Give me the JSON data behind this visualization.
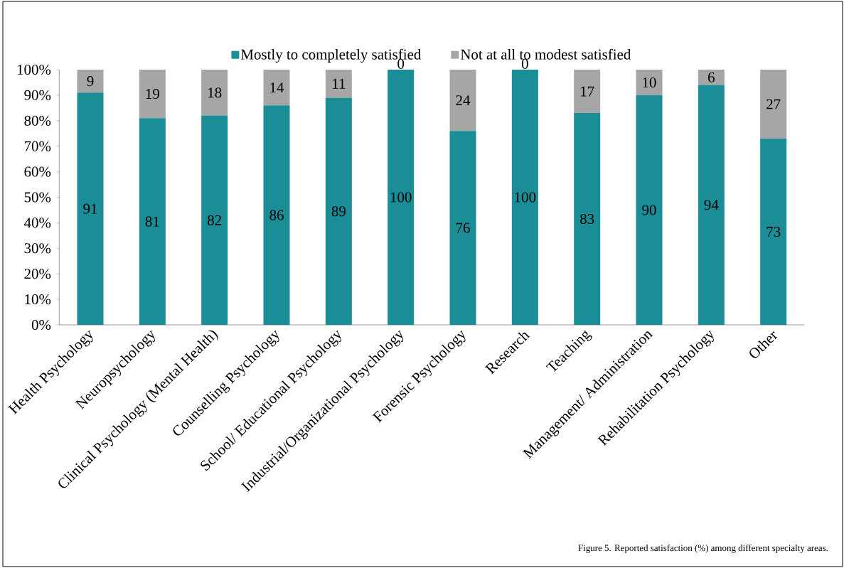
{
  "chart_data": {
    "type": "bar",
    "stacked": true,
    "categories": [
      "Health Psychology",
      "Neuropsychology",
      "Clinical Psychology (Mental Health)",
      "Counselling Psychology",
      "School/ Educational Psychology",
      "Industrial/Organizational Psychology",
      "Forensic Psychology",
      "Research",
      "Teaching",
      "Management/ Administration",
      "Rehabilitation Psychology",
      "Other"
    ],
    "series": [
      {
        "name": "Mostly to completely  satisfied",
        "color": "#1b8d97",
        "values": [
          91,
          81,
          82,
          86,
          89,
          100,
          76,
          100,
          83,
          90,
          94,
          73
        ]
      },
      {
        "name": "Not at all to modest satisfied",
        "color": "#a6a6a6",
        "values": [
          9,
          19,
          18,
          14,
          11,
          0,
          24,
          0,
          17,
          10,
          6,
          27
        ]
      }
    ],
    "ylim": [
      0,
      100
    ],
    "yticks": [
      {
        "value": 0,
        "label": "0%"
      },
      {
        "value": 10,
        "label": "10%"
      },
      {
        "value": 20,
        "label": "20%"
      },
      {
        "value": 30,
        "label": "30%"
      },
      {
        "value": 40,
        "label": "40%"
      },
      {
        "value": 50,
        "label": "50%"
      },
      {
        "value": 60,
        "label": "60%"
      },
      {
        "value": 70,
        "label": "70%"
      },
      {
        "value": 80,
        "label": "80%"
      },
      {
        "value": 90,
        "label": "90%"
      },
      {
        "value": 100,
        "label": "100%"
      }
    ],
    "data_labels": true,
    "legend": "top",
    "annotations": [
      "Figure 5. Reported satisfaction (%) among different specialty areas."
    ]
  }
}
